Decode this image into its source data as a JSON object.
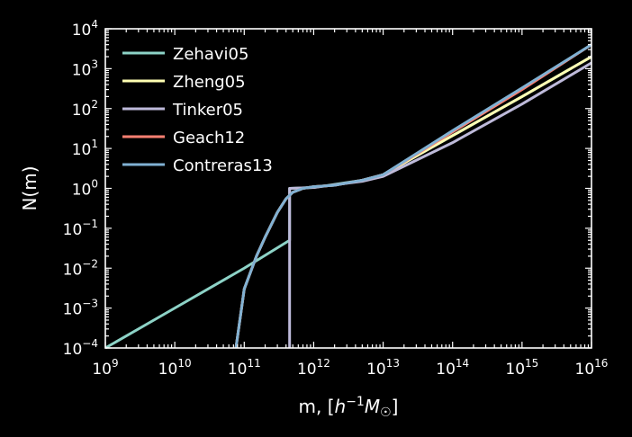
{
  "chart_data": {
    "type": "line",
    "xlabel": "m, [h⁻¹M☉]",
    "ylabel": "N(m)",
    "x_scale": "log",
    "y_scale": "log",
    "xlim": [
      1000000000.0,
      1e+16
    ],
    "ylim": [
      0.0001,
      10000.0
    ],
    "x_ticks": [
      {
        "base": "10",
        "exp": "9",
        "value": 1000000000.0
      },
      {
        "base": "10",
        "exp": "10",
        "value": 10000000000.0
      },
      {
        "base": "10",
        "exp": "11",
        "value": 100000000000.0
      },
      {
        "base": "10",
        "exp": "12",
        "value": 1000000000000.0
      },
      {
        "base": "10",
        "exp": "13",
        "value": 10000000000000.0
      },
      {
        "base": "10",
        "exp": "14",
        "value": 100000000000000.0
      },
      {
        "base": "10",
        "exp": "15",
        "value": 1000000000000000.0
      },
      {
        "base": "10",
        "exp": "16",
        "value": 1e+16
      }
    ],
    "y_ticks": [
      {
        "base": "10",
        "exp": "−4",
        "value": 0.0001
      },
      {
        "base": "10",
        "exp": "−3",
        "value": 0.001
      },
      {
        "base": "10",
        "exp": "−2",
        "value": 0.01
      },
      {
        "base": "10",
        "exp": "−1",
        "value": 0.1
      },
      {
        "base": "10",
        "exp": "0",
        "value": 1
      },
      {
        "base": "10",
        "exp": "1",
        "value": 10
      },
      {
        "base": "10",
        "exp": "2",
        "value": 100
      },
      {
        "base": "10",
        "exp": "3",
        "value": 1000
      },
      {
        "base": "10",
        "exp": "4",
        "value": 10000
      }
    ],
    "grid": false,
    "legend_position": "top-left",
    "series": [
      {
        "name": "Zehavi05",
        "color": "#8dd3c7",
        "points": [
          [
            1000000000.0,
            0.0001
          ],
          [
            10000000000.0,
            0.001
          ],
          [
            100000000000.0,
            0.01
          ],
          [
            450000000000.0,
            0.05
          ],
          [
            450000000000.0,
            1.0
          ],
          [
            1000000000000.0,
            1.05
          ],
          [
            5000000000000.0,
            1.6
          ],
          [
            10000000000000.0,
            2.2
          ],
          [
            100000000000000.0,
            21
          ],
          [
            1000000000000000.0,
            200
          ],
          [
            1e+16,
            2000
          ]
        ]
      },
      {
        "name": "Zheng05",
        "color": "#ffffb3",
        "points": [
          [
            76000000000.0,
            0.0001
          ],
          [
            100000000000.0,
            0.003
          ],
          [
            150000000000.0,
            0.02
          ],
          [
            200000000000.0,
            0.06
          ],
          [
            300000000000.0,
            0.25
          ],
          [
            400000000000.0,
            0.55
          ],
          [
            500000000000.0,
            0.8
          ],
          [
            700000000000.0,
            1.0
          ],
          [
            1000000000000.0,
            1.1
          ],
          [
            2000000000000.0,
            1.2
          ],
          [
            5000000000000.0,
            1.6
          ],
          [
            10000000000000.0,
            2.2
          ],
          [
            100000000000000.0,
            21
          ],
          [
            1000000000000000.0,
            200
          ],
          [
            1e+16,
            2000
          ]
        ]
      },
      {
        "name": "Tinker05",
        "color": "#bebada",
        "points": [
          [
            450000000000.0,
            0.0001
          ],
          [
            450000000000.0,
            1.0
          ],
          [
            1000000000000.0,
            1.05
          ],
          [
            5000000000000.0,
            1.5
          ],
          [
            10000000000000.0,
            2.0
          ],
          [
            100000000000000.0,
            14
          ],
          [
            1000000000000000.0,
            130
          ],
          [
            1e+16,
            1400
          ]
        ]
      },
      {
        "name": "Geach12",
        "color": "#fb8072",
        "points": [
          [
            76000000000.0,
            0.0001
          ],
          [
            100000000000.0,
            0.003
          ],
          [
            150000000000.0,
            0.02
          ],
          [
            200000000000.0,
            0.06
          ],
          [
            300000000000.0,
            0.25
          ],
          [
            400000000000.0,
            0.55
          ],
          [
            500000000000.0,
            0.8
          ],
          [
            700000000000.0,
            1.0
          ],
          [
            1000000000000.0,
            1.1
          ],
          [
            2000000000000.0,
            1.2
          ],
          [
            5000000000000.0,
            1.6
          ],
          [
            10000000000000.0,
            2.2
          ],
          [
            100000000000000.0,
            26
          ],
          [
            1000000000000000.0,
            300
          ],
          [
            1e+16,
            4000
          ]
        ]
      },
      {
        "name": "Contreras13",
        "color": "#80b1d3",
        "points": [
          [
            76000000000.0,
            0.0001
          ],
          [
            100000000000.0,
            0.003
          ],
          [
            150000000000.0,
            0.02
          ],
          [
            200000000000.0,
            0.06
          ],
          [
            300000000000.0,
            0.25
          ],
          [
            400000000000.0,
            0.55
          ],
          [
            500000000000.0,
            0.8
          ],
          [
            700000000000.0,
            1.0
          ],
          [
            1000000000000.0,
            1.1
          ],
          [
            2000000000000.0,
            1.2
          ],
          [
            5000000000000.0,
            1.6
          ],
          [
            10000000000000.0,
            2.2
          ],
          [
            100000000000000.0,
            28
          ],
          [
            1000000000000000.0,
            330
          ],
          [
            1e+16,
            4000
          ]
        ]
      }
    ]
  }
}
